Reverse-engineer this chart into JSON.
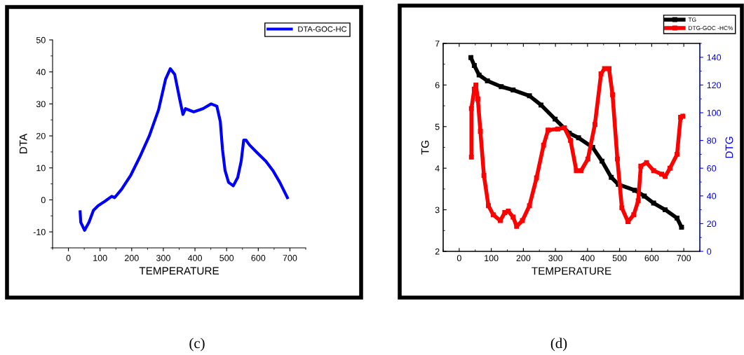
{
  "chart_data": [
    {
      "type": "line",
      "xlabel": "TEMPERATURE",
      "ylabel": "DTA",
      "xlim": [
        -50,
        750
      ],
      "ylim": [
        -15,
        50
      ],
      "xticks": [
        0,
        100,
        200,
        300,
        400,
        500,
        600,
        700
      ],
      "yticks": [
        -10,
        0,
        10,
        20,
        30,
        40,
        50
      ],
      "legend": "top right",
      "grid": false,
      "annotations": [
        "(c)"
      ],
      "series": [
        {
          "name": "DTA-GOC-HC",
          "color": "#0000ff",
          "x": [
            37,
            39,
            51,
            65,
            79,
            94,
            116,
            137,
            146,
            168,
            197,
            226,
            256,
            285,
            307,
            322,
            336,
            351,
            362,
            370,
            396,
            425,
            451,
            469,
            480,
            487,
            495,
            506,
            521,
            535,
            546,
            554,
            561,
            572,
            594,
            624,
            646,
            668,
            692
          ],
          "values": [
            -3.7,
            -7,
            -9.5,
            -7,
            -3.3,
            -1.8,
            -0.4,
            1.1,
            0.7,
            3.3,
            7.7,
            13.5,
            20.1,
            28.2,
            37.7,
            41,
            39.2,
            31.8,
            26.7,
            28.5,
            27.5,
            28.5,
            30,
            29.3,
            24.5,
            15.7,
            9.2,
            5.5,
            4.4,
            7,
            12.1,
            18.7,
            18.7,
            17.2,
            15,
            12.1,
            9.2,
            5.5,
            0.7
          ]
        }
      ]
    },
    {
      "type": "line",
      "xlabel": "TEMPERATURE",
      "ylabel": "TG",
      "y2label": "DTG",
      "xlim": [
        -50,
        750
      ],
      "ylim": [
        2,
        7
      ],
      "y2lim": [
        0,
        150
      ],
      "xticks": [
        0,
        100,
        200,
        300,
        400,
        500,
        600,
        700
      ],
      "yticks": [
        2,
        3,
        4,
        5,
        6,
        7
      ],
      "y2ticks": [
        0,
        20,
        40,
        60,
        80,
        100,
        120,
        140
      ],
      "legend": "top right",
      "grid": false,
      "marker": "square",
      "annotations": [
        "(d)"
      ],
      "series": [
        {
          "name": "TG",
          "color": "#000000",
          "x": [
            36.5,
            47,
            62,
            88,
            131,
            168,
            219,
            255,
            299,
            343,
            372,
            416,
            445,
            474,
            496,
            547,
            577,
            606,
            642,
            679,
            693
          ],
          "values": [
            6.66,
            6.47,
            6.24,
            6.1,
            5.96,
            5.88,
            5.74,
            5.52,
            5.18,
            4.84,
            4.73,
            4.5,
            4.17,
            3.78,
            3.61,
            3.47,
            3.33,
            3.16,
            3.0,
            2.8,
            2.58
          ]
        },
        {
          "name": "DTG-GOC -HC%",
          "color": "#ff0000",
          "axis": "y2",
          "x": [
            38,
            38,
            47,
            52,
            58,
            66,
            77,
            91,
            106,
            128,
            142,
            153,
            168,
            179,
            197,
            219,
            241,
            263,
            277,
            307,
            328,
            347,
            365,
            380,
            401,
            423,
            442,
            453,
            467,
            478,
            493,
            507,
            526,
            544,
            558,
            566,
            584,
            606,
            631,
            642,
            657,
            679,
            690,
            697
          ],
          "values": [
            68,
            103,
            117,
            120,
            110,
            86.6,
            54.8,
            33,
            26.4,
            22.2,
            28,
            29,
            24.7,
            18.1,
            22.2,
            33,
            53,
            76.6,
            87.5,
            88.3,
            89.1,
            80,
            58.2,
            58.2,
            66.6,
            91.6,
            128,
            131.8,
            131.8,
            113,
            66.6,
            31.4,
            21.4,
            26.4,
            36.5,
            61.5,
            64,
            58.2,
            55.7,
            54,
            60,
            70,
            96.7,
            97.5
          ]
        }
      ]
    }
  ]
}
